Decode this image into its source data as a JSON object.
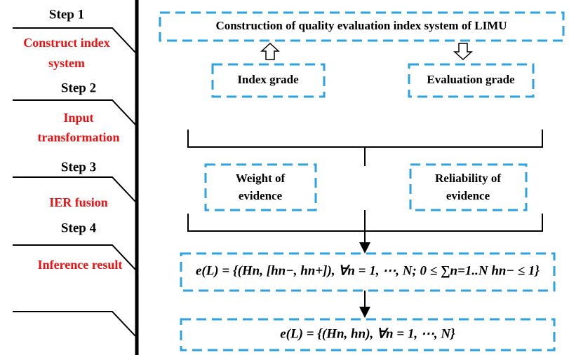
{
  "steps": [
    {
      "label": "Step 1",
      "desc": [
        "Construct index",
        "system"
      ]
    },
    {
      "label": "Step 2",
      "desc": [
        "Input",
        "transformation"
      ]
    },
    {
      "label": "Step 3",
      "desc": [
        "IER fusion"
      ]
    },
    {
      "label": "Step 4",
      "desc": [
        "Inference result"
      ]
    }
  ],
  "boxes": {
    "system": "Construction of quality evaluation index system of LIMU",
    "index_grade": "Index grade",
    "evaluation_grade": "Evaluation grade",
    "weight": [
      "Weight of",
      "evidence"
    ],
    "reliability": [
      "Reliability of",
      "evidence"
    ],
    "interval_result": "e(L) = {(Hn, [hn−, hn+]), ∀n = 1, ⋯, N; 0 ≤ ∑n=1..N hn− ≤ 1}",
    "final_result": "e(L) = {(Hn, hn), ∀n = 1, ⋯, N}"
  }
}
